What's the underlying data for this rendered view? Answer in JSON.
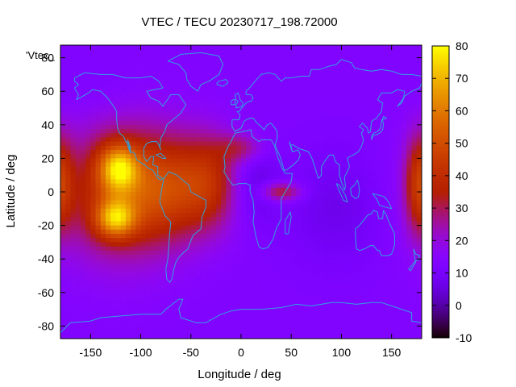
{
  "chart_data": {
    "type": "heatmap",
    "title": "VTEC / TECU 20230717_198.72000",
    "xlabel": "Longitude / deg",
    "ylabel": "Latitude / deg",
    "key_label": "'Vtec_",
    "xlim": [
      -180,
      180
    ],
    "ylim": [
      -87.5,
      87.5
    ],
    "x_ticks": [
      -150,
      -100,
      -50,
      0,
      50,
      100,
      150
    ],
    "x_tick_labels": [
      "-150",
      "-100",
      "-50",
      "0",
      "50",
      "100",
      "150"
    ],
    "y_ticks": [
      -80,
      -60,
      -40,
      -20,
      0,
      20,
      40,
      60,
      80
    ],
    "y_tick_labels": [
      "-80",
      "-60",
      "-40",
      "-20",
      "0",
      "20",
      "40",
      "60",
      "80"
    ],
    "colorbar": {
      "range": [
        -10,
        80
      ],
      "ticks": [
        -10,
        0,
        10,
        20,
        30,
        40,
        50,
        60,
        70,
        80
      ],
      "tick_labels": [
        "-10",
        "0",
        "10",
        "20",
        "30",
        "40",
        "50",
        "60",
        "70",
        "80"
      ],
      "colormap": "gnuplot-pm3d-rgbformulae-7-5-15"
    },
    "grid": {
      "lon_step": 5,
      "lat_step": 2.5,
      "field_model": "gaussian-blobs",
      "background": 13,
      "features": [
        {
          "name": "americas-west-peak-north",
          "lon": -122,
          "lat": 14,
          "amp": 40,
          "sx": 14,
          "sy": 10
        },
        {
          "name": "americas-west-peak-south",
          "lon": -125,
          "lat": -16,
          "amp": 38,
          "sx": 14,
          "sy": 8
        },
        {
          "name": "pacific-east-band",
          "lon": -125,
          "lat": 0,
          "amp": 27,
          "sx": 40,
          "sy": 28
        },
        {
          "name": "americas-central",
          "lon": -75,
          "lat": 2,
          "amp": 24,
          "sx": 30,
          "sy": 22
        },
        {
          "name": "atlantic-band",
          "lon": -30,
          "lat": 6,
          "amp": 22,
          "sx": 22,
          "sy": 20
        },
        {
          "name": "africa-north-band",
          "lon": 0,
          "lat": 26,
          "amp": 14,
          "sx": 16,
          "sy": 6
        },
        {
          "name": "indian-ocean-tongue",
          "lon": 40,
          "lat": 0,
          "amp": 22,
          "sx": 14,
          "sy": 4
        },
        {
          "name": "central-africa-trough",
          "lon": 10,
          "lat": 5,
          "amp": -9,
          "sx": 18,
          "sy": 16
        },
        {
          "name": "asia-trough",
          "lon": 95,
          "lat": -10,
          "amp": -6,
          "sx": 38,
          "sy": 25
        },
        {
          "name": "date-line-band",
          "lon": 178,
          "lat": 5,
          "amp": 26,
          "sx": 10,
          "sy": 20
        },
        {
          "name": "north-pacific-low",
          "lon": -150,
          "lat": 60,
          "amp": -2,
          "sx": 30,
          "sy": 12
        }
      ]
    },
    "overlay": "coastlines"
  }
}
